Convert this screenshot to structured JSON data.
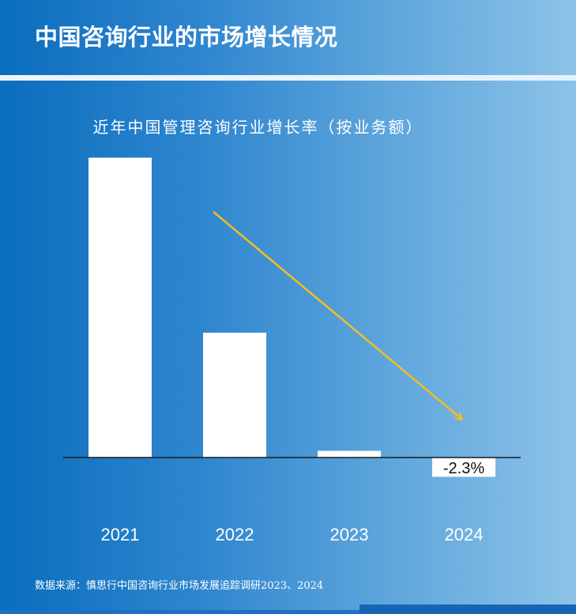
{
  "header": {
    "title": "中国咨询行业的市场增长情况"
  },
  "chart_data": {
    "type": "bar",
    "title": "近年中国管理咨询行业增长率（按业务额）",
    "categories": [
      "2021",
      "2022",
      "2023",
      "2024"
    ],
    "values": [
      35.8,
      14.9,
      0.8,
      -2.3
    ],
    "data_labels": [
      "",
      "",
      "",
      "-2.3%"
    ],
    "ylim": [
      -7,
      36
    ],
    "trend_arrow": {
      "from_category": "2022",
      "to_category": "2024",
      "color": "#f2c01e"
    },
    "colors": {
      "bar": "#ffffff",
      "axis": "#1a1a1a",
      "label": "#ffffff",
      "data_label": "#111111"
    }
  },
  "source": {
    "text": "数据来源：慎思行中国咨询行业市场发展追踪调研2023、2024"
  }
}
